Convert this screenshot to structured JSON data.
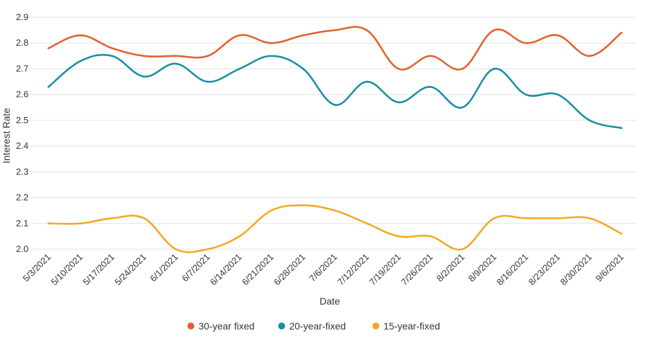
{
  "chart_data": {
    "type": "line",
    "title": "",
    "xlabel": "Date",
    "ylabel": "Interest Rate",
    "ylim": [
      2.0,
      2.9
    ],
    "yticks": [
      2.0,
      2.1,
      2.2,
      2.3,
      2.4,
      2.5,
      2.6,
      2.7,
      2.8,
      2.9
    ],
    "categories": [
      "5/3/2021",
      "5/10/2021",
      "5/17/2021",
      "5/24/2021",
      "6/1/2021",
      "6/7/2021",
      "6/14/2021",
      "6/21/2021",
      "6/28/2021",
      "7/6/2021",
      "7/12/2021",
      "7/19/2021",
      "7/26/2021",
      "8/2/2021",
      "8/9/2021",
      "8/16/2021",
      "8/23/2021",
      "8/30/2021",
      "9/6/2021"
    ],
    "grid": true,
    "legend_position": "bottom",
    "series": [
      {
        "name": "30-year fixed",
        "color": "#e0622c",
        "values": [
          2.78,
          2.83,
          2.78,
          2.75,
          2.75,
          2.75,
          2.83,
          2.8,
          2.83,
          2.85,
          2.85,
          2.7,
          2.75,
          2.7,
          2.85,
          2.8,
          2.83,
          2.75,
          2.84
        ]
      },
      {
        "name": "20-year-fixed",
        "color": "#1a8fa3",
        "values": [
          2.63,
          2.73,
          2.75,
          2.67,
          2.72,
          2.65,
          2.7,
          2.75,
          2.7,
          2.56,
          2.65,
          2.57,
          2.63,
          2.55,
          2.7,
          2.6,
          2.6,
          2.5,
          2.47
        ]
      },
      {
        "name": "15-year-fixed",
        "color": "#f2a923",
        "values": [
          2.1,
          2.1,
          2.12,
          2.12,
          2.0,
          2.0,
          2.05,
          2.15,
          2.17,
          2.15,
          2.1,
          2.05,
          2.05,
          2.0,
          2.12,
          2.12,
          2.12,
          2.12,
          2.06
        ]
      }
    ]
  }
}
